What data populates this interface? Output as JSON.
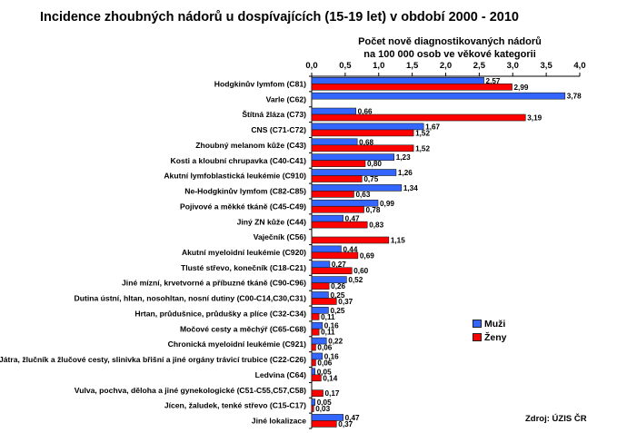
{
  "chart_data": {
    "type": "bar",
    "orientation": "horizontal",
    "title": "Incidence zhoubných nádorů u dospívajících (15-19 let) v období 2000 - 2010",
    "xlabel_lines": [
      "Počet nově diagnostikovaných  nádorů",
      "na 100 000 osob ve věkové kategorii"
    ],
    "ylabel": "",
    "xlim": [
      0,
      4
    ],
    "x_ticks": [
      "0,0",
      "0,5",
      "1,0",
      "1,5",
      "2,0",
      "2,5",
      "3,0",
      "3,5",
      "4,0"
    ],
    "x_tick_values": [
      0,
      0.5,
      1,
      1.5,
      2,
      2.5,
      3,
      3.5,
      4
    ],
    "axis_position": "top",
    "grid": false,
    "legend_position": "right",
    "categories": [
      "Hodgkinův lymfom (C81)",
      "Varle (C62)",
      "Štítná žláza (C73)",
      "CNS (C71-C72)",
      "Zhoubný melanom kůže (C43)",
      "Kosti a kloubní chrupavka (C40-C41)",
      "Akutní lymfoblastická leukémie (C910)",
      "Ne-Hodgkinův lymfom (C82-C85)",
      "Pojivové a měkké tkáně (C45-C49)",
      "Jiný ZN kůže (C44)",
      "Vaječník (C56)",
      "Akutní myeloidní leukémie (C920)",
      "Tlusté střevo, konečník (C18-C21)",
      "Jiné mízní, krvetvorné a příbuzné tkáně (C90-C96)",
      "Dutina ústní, hltan, nosohltan, nosní dutiny (C00-C14,C30,C31)",
      "Hrtan, průdušnice, průdušky a plíce (C32-C34)",
      "Močové cesty a měchýř (C65-C68)",
      "Chronická myeloidní leukémie (C921)",
      "Játra, žlučník a žlučové cesty, slinivka břišní a jiné orgány trávicí trubice (C22-C26)",
      "Ledvina (C64)",
      "Vulva, pochva, děloha a jiné gynekologické (C51-C55,C57,C58)",
      "Jícen, žaludek, tenké střevo (C15-C17)",
      "Jiné lokalizace"
    ],
    "series": [
      {
        "name": "Muži",
        "color": "#3366FF",
        "values": [
          2.57,
          3.78,
          0.66,
          1.67,
          0.68,
          1.23,
          1.26,
          1.34,
          0.99,
          0.47,
          null,
          0.44,
          0.27,
          0.52,
          0.25,
          0.25,
          0.16,
          0.22,
          0.16,
          0.05,
          null,
          0.05,
          0.47
        ],
        "labels": [
          "2,57",
          "3,78",
          "0,66",
          "1,67",
          "0,68",
          "1,23",
          "1,26",
          "1,34",
          "0,99",
          "0,47",
          null,
          "0,44",
          "0,27",
          "0,52",
          "0,25",
          "0,25",
          "0,16",
          "0,22",
          "0,16",
          "0,05",
          null,
          "0,05",
          "0,47"
        ]
      },
      {
        "name": "Ženy",
        "color": "#FF0000",
        "values": [
          2.99,
          null,
          3.19,
          1.52,
          1.52,
          0.8,
          0.75,
          0.63,
          0.78,
          0.83,
          1.15,
          0.69,
          0.6,
          0.26,
          0.37,
          0.11,
          0.11,
          0.06,
          0.06,
          0.14,
          0.17,
          0.03,
          0.37
        ],
        "labels": [
          "2,99",
          null,
          "3,19",
          "1,52",
          "1,52",
          "0,80",
          "0,75",
          "0,63",
          "0,78",
          "0,83",
          "1,15",
          "0,69",
          "0,60",
          "0,26",
          "0,37",
          "0,11",
          "0,11",
          "0,06",
          "0,06",
          "0,14",
          "0,17",
          "0,03",
          "0,37"
        ]
      }
    ],
    "source": "Zdroj: ÚZIS ČR"
  },
  "legend": {
    "items": [
      {
        "label": "Muži",
        "color": "#3366FF"
      },
      {
        "label": "Ženy",
        "color": "#FF0000"
      }
    ]
  }
}
